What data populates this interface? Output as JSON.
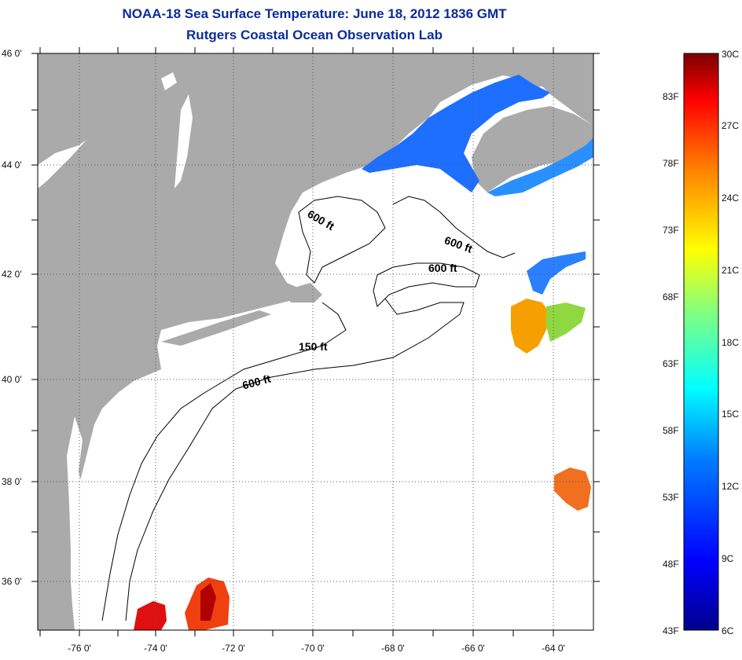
{
  "title": {
    "line1": "NOAA-18 Sea Surface Temperature:  June 18, 2012 1836 GMT",
    "line2": "Rutgers Coastal Ocean Observation Lab"
  },
  "colors": {
    "land": "#aaaaaa",
    "ocean": "#ffffff",
    "title": "#0b2c99",
    "grid": "#555555"
  },
  "map": {
    "lat_labels": [
      "46 0'",
      "44 0'",
      "42 0'",
      "40 0'",
      "38 0'",
      "36 0'"
    ],
    "lon_labels": [
      "-76 0'",
      "-74 0'",
      "-72 0'",
      "-70 0'",
      "-68 0'",
      "-66 0'",
      "-64 0'"
    ],
    "contour_labels": [
      "600 ft",
      "600 ft",
      "600 ft",
      "150 ft",
      "600 ft"
    ]
  },
  "colorbar": {
    "f_labels": [
      "83F",
      "78F",
      "73F",
      "68F",
      "63F",
      "58F",
      "53F",
      "48F",
      "43F"
    ],
    "c_labels": [
      "30C",
      "27C",
      "24C",
      "21C",
      "18C",
      "15C",
      "12C",
      "9C",
      "6C"
    ]
  }
}
